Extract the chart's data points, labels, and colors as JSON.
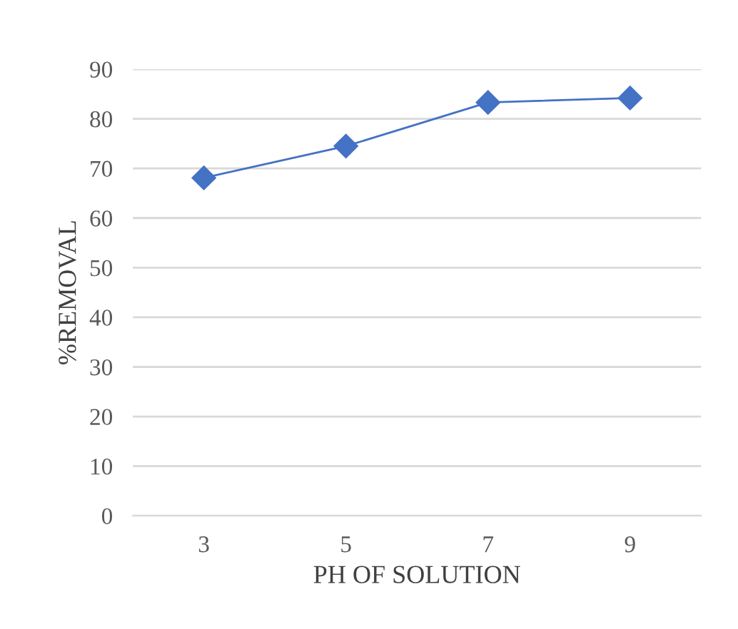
{
  "chart_data": {
    "type": "line",
    "xlabel": "PH OF SOLUTION",
    "ylabel": "%REMOVAL",
    "categories": [
      "3",
      "5",
      "7",
      "9"
    ],
    "series": [
      {
        "color": "#4472c4",
        "values": [
          68.1,
          74.5,
          83.3,
          84.2
        ]
      }
    ],
    "ylim": [
      0,
      90
    ],
    "yticks": [
      0,
      10,
      20,
      30,
      40,
      50,
      60,
      70,
      80,
      90
    ],
    "grid": "y",
    "marker": "diamond",
    "line_style": "solid",
    "legend": false
  }
}
